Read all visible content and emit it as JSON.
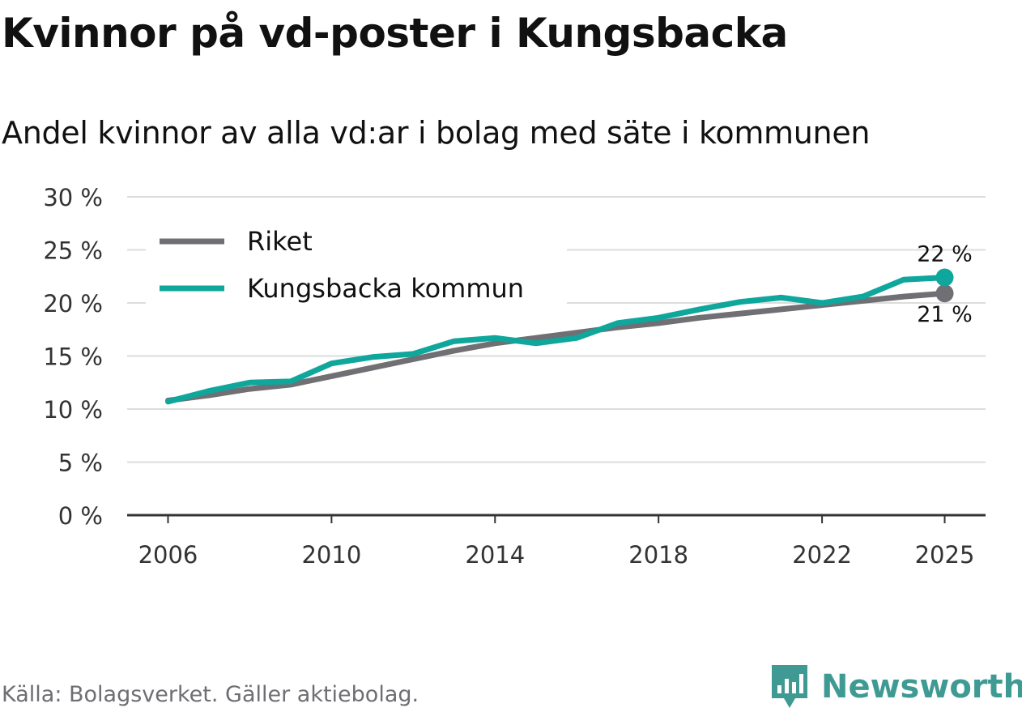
{
  "title": "Kvinnor på vd-poster i Kungsbacka",
  "subtitle": "Andel kvinnor av alla vd:ar i bolag med säte i kommunen",
  "source": "Källa: Bolagsverket. Gäller aktiebolag.",
  "logo": {
    "text": "Newsworthy",
    "icon": "bar-chart-pin-icon"
  },
  "colors": {
    "riket": "#706f74",
    "kungsbacka": "#0fa69c",
    "grid": "#dcdcdc",
    "axis": "#333333",
    "logo": "#3f9a94"
  },
  "chart_data": {
    "type": "line",
    "title": "Kvinnor på vd-poster i Kungsbacka",
    "subtitle": "Andel kvinnor av alla vd:ar i bolag med säte i kommunen",
    "x": [
      2006,
      2007,
      2008,
      2009,
      2010,
      2011,
      2012,
      2013,
      2014,
      2015,
      2016,
      2017,
      2018,
      2019,
      2020,
      2021,
      2022,
      2023,
      2024,
      2025
    ],
    "xlim": [
      2005,
      2026
    ],
    "ylim": [
      0,
      30
    ],
    "xticks": [
      2006,
      2010,
      2014,
      2018,
      2022,
      2025
    ],
    "xtick_labels": [
      "2006",
      "2010",
      "2014",
      "2018",
      "2022",
      "2025"
    ],
    "yticks": [
      0,
      5,
      10,
      15,
      20,
      25,
      30
    ],
    "ytick_labels": [
      "0 %",
      "5 %",
      "10 %",
      "15 %",
      "20 %",
      "25 %",
      "30 %"
    ],
    "grid": true,
    "legend_position": "top-left",
    "series": [
      {
        "name": "Riket",
        "color": "#706f74",
        "values": [
          10.8,
          11.3,
          11.9,
          12.3,
          13.1,
          13.9,
          14.7,
          15.5,
          16.2,
          16.7,
          17.2,
          17.7,
          18.1,
          18.6,
          19.0,
          19.4,
          19.8,
          20.2,
          20.6,
          20.9
        ],
        "end_label": "21 %"
      },
      {
        "name": "Kungsbacka kommun",
        "color": "#0fa69c",
        "values": [
          10.7,
          11.7,
          12.5,
          12.6,
          14.3,
          14.9,
          15.2,
          16.4,
          16.7,
          16.2,
          16.7,
          18.1,
          18.6,
          19.4,
          20.1,
          20.5,
          20.0,
          20.6,
          22.2,
          22.4
        ],
        "end_label": "22 %"
      }
    ]
  }
}
